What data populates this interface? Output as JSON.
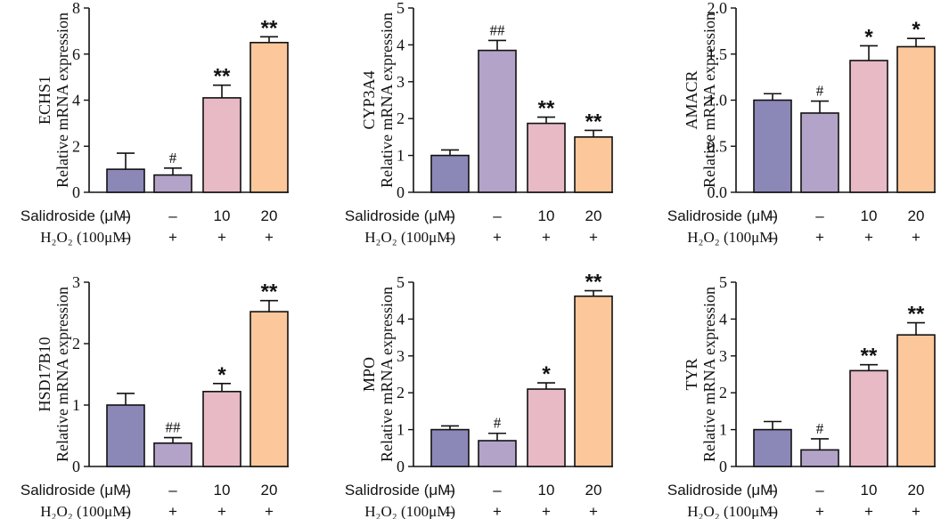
{
  "colors": [
    "#8b88b8",
    "#b3a3c9",
    "#e8bac6",
    "#fbc79b"
  ],
  "row_labels": {
    "salidroside": "Salidroside (μM)",
    "h2o2": "H₂O₂ (100μM)",
    "salidroside_values": [
      "–",
      "–",
      "10",
      "20"
    ],
    "h2o2_values": [
      "–",
      "+",
      "+",
      "+"
    ]
  },
  "chart_data": [
    {
      "type": "bar",
      "gene": "ECHS1",
      "ylabel": "Relative mRNA expression",
      "ylim": [
        0,
        8
      ],
      "ticks": [
        "0",
        "2",
        "4",
        "6",
        "8"
      ],
      "values": [
        1.0,
        0.75,
        4.1,
        6.5
      ],
      "errors": [
        0.7,
        0.3,
        0.55,
        0.25
      ],
      "marks": [
        "",
        "#",
        "**",
        "**"
      ]
    },
    {
      "type": "bar",
      "gene": "CYP3A4",
      "ylabel": "Relative mRNA expression",
      "ylim": [
        0,
        5
      ],
      "ticks": [
        "0",
        "1",
        "2",
        "3",
        "4",
        "5"
      ],
      "values": [
        1.0,
        3.85,
        1.87,
        1.5
      ],
      "errors": [
        0.15,
        0.27,
        0.17,
        0.18
      ],
      "marks": [
        "",
        "##",
        "**",
        "**"
      ]
    },
    {
      "type": "bar",
      "gene": "AMACR",
      "ylabel": "Relative mRNA expression",
      "ylim": [
        0,
        2.0
      ],
      "ticks": [
        "0.0",
        "0.5",
        "1.0",
        "1.5",
        "2.0"
      ],
      "values": [
        1.0,
        0.86,
        1.43,
        1.58
      ],
      "errors": [
        0.07,
        0.13,
        0.16,
        0.09
      ],
      "marks": [
        "",
        "#",
        "*",
        "*"
      ]
    },
    {
      "type": "bar",
      "gene": "HSD17B10",
      "ylabel": "Relative mRNA expression",
      "ylim": [
        0,
        3
      ],
      "ticks": [
        "0",
        "1",
        "2",
        "3"
      ],
      "values": [
        1.0,
        0.38,
        1.22,
        2.52
      ],
      "errors": [
        0.19,
        0.09,
        0.13,
        0.18
      ],
      "marks": [
        "",
        "##",
        "*",
        "**"
      ]
    },
    {
      "type": "bar",
      "gene": "MPO",
      "ylabel": "Relative mRNA expression",
      "ylim": [
        0,
        5
      ],
      "ticks": [
        "0",
        "1",
        "2",
        "3",
        "4",
        "5"
      ],
      "values": [
        1.0,
        0.7,
        2.1,
        4.62
      ],
      "errors": [
        0.1,
        0.2,
        0.17,
        0.15
      ],
      "marks": [
        "",
        "#",
        "*",
        "**"
      ]
    },
    {
      "type": "bar",
      "gene": "TYR",
      "ylabel": "Relative mRNA expression",
      "ylim": [
        0,
        5
      ],
      "ticks": [
        "0",
        "1",
        "2",
        "3",
        "4",
        "5"
      ],
      "values": [
        1.0,
        0.45,
        2.6,
        3.57
      ],
      "errors": [
        0.22,
        0.3,
        0.16,
        0.33
      ],
      "marks": [
        "",
        "#",
        "**",
        "**"
      ]
    }
  ]
}
